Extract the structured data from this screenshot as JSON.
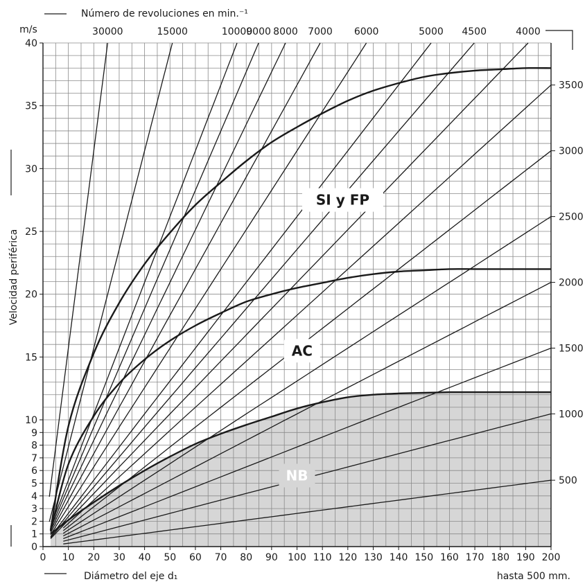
{
  "chart_data": {
    "type": "line",
    "title": "",
    "top_axis_label": "Número de revoluciones en min.⁻¹",
    "y_unit": "m/s",
    "ylabel": "Velocidad periférica",
    "xlabel": "Diámetro del eje d₁",
    "x_note": "hasta 500 mm.",
    "xlim": [
      0,
      200
    ],
    "ylim": [
      0,
      40
    ],
    "x_ticks": [
      0,
      10,
      20,
      30,
      40,
      50,
      60,
      70,
      80,
      90,
      100,
      110,
      120,
      130,
      140,
      150,
      160,
      170,
      180,
      190,
      200
    ],
    "y_ticks_upper": [
      15,
      20,
      25,
      30,
      35,
      40
    ],
    "y_ticks_lower": [
      0,
      1,
      2,
      3,
      4,
      5,
      6,
      7,
      8,
      9,
      10
    ],
    "y_scale": "piecewise: 0–10 expanded, 10–40 compressed",
    "grid": true,
    "rpm_lines_top": [
      30000,
      15000,
      10000,
      9000,
      8000,
      7000,
      6000,
      5000,
      4500,
      4000
    ],
    "rpm_lines_right": [
      3500,
      3000,
      2500,
      2000,
      1500,
      1000,
      500
    ],
    "rpm_label_colors": {
      "text": "#1a1a1a"
    },
    "limit_curves": [
      {
        "name": "SI y FP",
        "x": [
          3,
          10,
          20,
          30,
          40,
          50,
          60,
          70,
          80,
          90,
          100,
          110,
          120,
          130,
          140,
          150,
          160,
          170,
          180,
          190,
          200
        ],
        "y": [
          1.3,
          9.5,
          15.3,
          19.3,
          22.4,
          24.9,
          27.1,
          28.9,
          30.6,
          32.1,
          33.3,
          34.4,
          35.4,
          36.2,
          36.8,
          37.3,
          37.6,
          37.8,
          37.9,
          38.0,
          38.0
        ]
      },
      {
        "name": "AC",
        "x": [
          3,
          10,
          20,
          30,
          40,
          50,
          60,
          70,
          80,
          90,
          100,
          110,
          120,
          130,
          140,
          150,
          160,
          170,
          180,
          190,
          200
        ],
        "y": [
          1.2,
          6.5,
          10.3,
          12.9,
          14.8,
          16.3,
          17.5,
          18.5,
          19.4,
          20.0,
          20.5,
          20.9,
          21.3,
          21.6,
          21.8,
          21.9,
          22.0,
          22.0,
          22.0,
          22.0,
          22.0
        ]
      },
      {
        "name": "NB",
        "shaded": true,
        "x": [
          3,
          10,
          20,
          30,
          40,
          50,
          60,
          70,
          80,
          90,
          100,
          110,
          120,
          130,
          140,
          150,
          160,
          170,
          180,
          190,
          200
        ],
        "y": [
          1.0,
          2.1,
          3.5,
          4.8,
          6.0,
          7.1,
          8.1,
          8.9,
          9.6,
          10.25,
          10.9,
          11.4,
          11.8,
          12.0,
          12.1,
          12.15,
          12.2,
          12.2,
          12.2,
          12.2,
          12.2
        ]
      }
    ],
    "colors": {
      "shade": "#d6d6d6",
      "grid": "#8a8a8a",
      "line": "#1a1a1a"
    }
  }
}
